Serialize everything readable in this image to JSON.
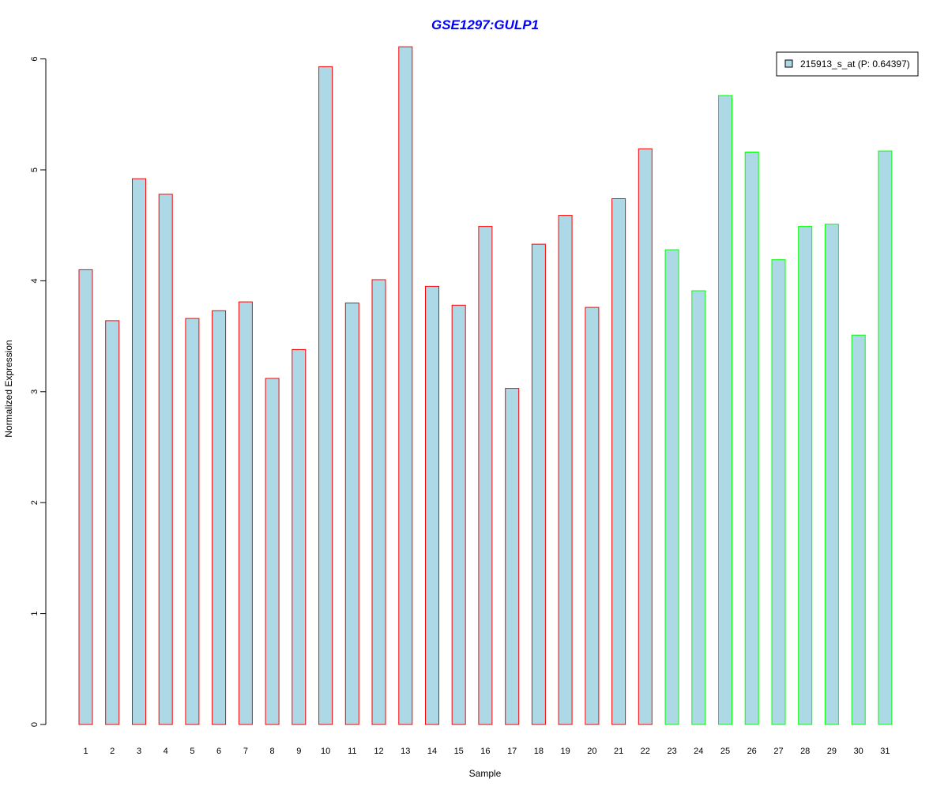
{
  "chart_data": {
    "type": "bar",
    "title": "GSE1297:GULP1",
    "xlabel": "Sample",
    "ylabel": "Normalized Expression",
    "categories": [
      "1",
      "2",
      "3",
      "4",
      "5",
      "6",
      "7",
      "8",
      "9",
      "10",
      "11",
      "12",
      "13",
      "14",
      "15",
      "16",
      "17",
      "18",
      "19",
      "20",
      "21",
      "22",
      "23",
      "24",
      "25",
      "26",
      "27",
      "28",
      "29",
      "30",
      "31"
    ],
    "values": [
      4.1,
      3.64,
      4.92,
      4.78,
      3.66,
      3.73,
      3.81,
      3.12,
      3.38,
      5.93,
      3.8,
      4.01,
      6.11,
      3.95,
      3.78,
      4.49,
      3.03,
      4.33,
      4.59,
      3.76,
      4.74,
      5.19,
      4.28,
      3.91,
      5.67,
      5.16,
      4.19,
      4.49,
      4.51,
      3.51,
      5.17
    ],
    "group": [
      "a",
      "a",
      "a",
      "a",
      "a",
      "a",
      "a",
      "a",
      "a",
      "a",
      "a",
      "a",
      "a",
      "a",
      "a",
      "a",
      "a",
      "a",
      "a",
      "a",
      "a",
      "a",
      "b",
      "b",
      "b",
      "b",
      "b",
      "b",
      "b",
      "b",
      "b"
    ],
    "yticks": [
      0,
      1,
      2,
      3,
      4,
      5,
      6
    ],
    "ylim": [
      0,
      6.11
    ],
    "grid": false,
    "legend": {
      "label": "215913_s_at (P: 0.64397)",
      "placement": "top-right"
    },
    "colors": {
      "bar_fill": "#add8e6",
      "group_a_border": "#ff0000",
      "group_b_border": "#00ff00",
      "title": "#0000ff",
      "axis": "#000000"
    }
  }
}
